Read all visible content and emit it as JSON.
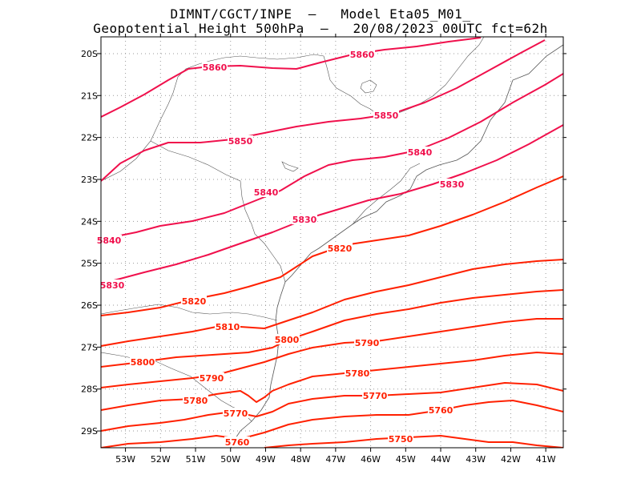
{
  "header": {
    "line1": "DIMNT/CGCT/INPE  –   Model Eta05_M01_",
    "line2": "Geopotential Height 500hPa  –   20/08/2023 00UTC fct=62h"
  },
  "map": {
    "lon_range": [
      -53.7,
      -40.5
    ],
    "lat_range": [
      -29.4,
      -19.6
    ],
    "grid": true,
    "lon_ticks": [
      "53W",
      "52W",
      "51W",
      "50W",
      "49W",
      "48W",
      "47W",
      "46W",
      "45W",
      "44W",
      "43W",
      "42W",
      "41W"
    ],
    "lat_ticks": [
      "20S",
      "21S",
      "22S",
      "23S",
      "24S",
      "25S",
      "26S",
      "27S",
      "28S",
      "29S"
    ]
  },
  "chart_data": {
    "type": "contour",
    "field": "Geopotential height 500 hPa",
    "units": "gpm",
    "interval": 10,
    "colors": {
      "high": "#f0104c",
      "low": "#ff2000",
      "border": "#555555"
    },
    "contours": [
      {
        "value": 5860,
        "label": "5860"
      },
      {
        "value": 5850,
        "label": "5850"
      },
      {
        "value": 5840,
        "label": "5840"
      },
      {
        "value": 5830,
        "label": "5830"
      },
      {
        "value": 5820,
        "label": "5820"
      },
      {
        "value": 5810,
        "label": "5810"
      },
      {
        "value": 5800,
        "label": "5800"
      },
      {
        "value": 5790,
        "label": "5790"
      },
      {
        "value": 5780,
        "label": "5780"
      },
      {
        "value": 5770,
        "label": "5770"
      },
      {
        "value": 5760,
        "label": "5760"
      },
      {
        "value": 5750,
        "label": "5750"
      }
    ]
  }
}
